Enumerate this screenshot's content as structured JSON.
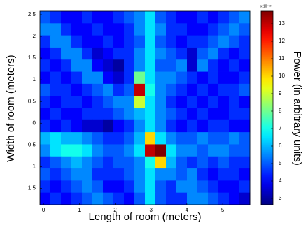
{
  "chart_data": {
    "type": "heatmap",
    "xlabel": "Length of room (meters)",
    "ylabel": "Width of room (meters)",
    "colorbar_label": "Power (in arbitrary units)",
    "colorbar_exponent": "x 10⁻¹³",
    "colormap": "jet",
    "xlim": [
      -0.1,
      5.76
    ],
    "ylim": [
      -1.88,
      2.58
    ],
    "xticks": [
      0,
      1,
      2,
      3,
      4,
      5
    ],
    "yticks": [
      2.5,
      2,
      1.5,
      1,
      0.5,
      0,
      {
        "value": -0.5,
        "label": "0.5"
      },
      {
        "value": -1,
        "label": "1"
      },
      {
        "value": -1.5,
        "label": "1.5"
      }
    ],
    "clim": [
      2.64,
      13.72
    ],
    "cticks": [
      3,
      4,
      5,
      6,
      7,
      8,
      9,
      10,
      11,
      12,
      13
    ],
    "z": [
      [
        5,
        4.5,
        4,
        4,
        4.5,
        4,
        4,
        4.5,
        5,
        5.5,
        6.5,
        5,
        4.5,
        4,
        4,
        4.5,
        4,
        4.5,
        5,
        5.5
      ],
      [
        5.5,
        5.5,
        4.5,
        4,
        4,
        4.5,
        4,
        4,
        4.5,
        5.5,
        6.5,
        5.5,
        4.5,
        4.5,
        4,
        4,
        4.5,
        5,
        5.5,
        5
      ],
      [
        4.5,
        5.5,
        5.5,
        4.5,
        4,
        4,
        4.5,
        4,
        4.5,
        5,
        6.5,
        5,
        4.5,
        4,
        4.5,
        4.5,
        5,
        5.5,
        5,
        4.5
      ],
      [
        4,
        4.5,
        5.5,
        5.5,
        4.5,
        3.5,
        4,
        4.5,
        4.5,
        5.5,
        6.5,
        5.5,
        5,
        4.5,
        3.5,
        5,
        5.5,
        4.5,
        4,
        4.5
      ],
      [
        4.5,
        4,
        4.5,
        5.5,
        5.5,
        4,
        3.5,
        3,
        4.5,
        5.5,
        6.5,
        5,
        5,
        5.5,
        3.5,
        5.5,
        4.5,
        4,
        4.5,
        4
      ],
      [
        4,
        4.5,
        4,
        4.5,
        5.5,
        5.5,
        4,
        3.5,
        4.5,
        8,
        6.5,
        5.5,
        5.5,
        5,
        4.5,
        4,
        4.5,
        4,
        4,
        4.5
      ],
      [
        5,
        4.5,
        4.5,
        4,
        4.5,
        5,
        5.5,
        4.5,
        5,
        13,
        7,
        5.5,
        5,
        4.5,
        4,
        4.5,
        4,
        4.5,
        4.5,
        5
      ],
      [
        4.5,
        4,
        4.5,
        4.5,
        4,
        4.5,
        5,
        5.5,
        5.5,
        9,
        6.5,
        5.5,
        4.5,
        4,
        4.5,
        4,
        4.5,
        4,
        4.5,
        4
      ],
      [
        4,
        4.5,
        4,
        4,
        4.5,
        4.5,
        4.5,
        5,
        5.5,
        6,
        6.5,
        5.5,
        5,
        4.5,
        4,
        4.5,
        4,
        4,
        4.5,
        4.5
      ],
      [
        4.5,
        4,
        4.5,
        4,
        3.5,
        3.5,
        3,
        4,
        4.5,
        5.5,
        6.5,
        5.5,
        4.5,
        4,
        4.5,
        4,
        4.5,
        4.5,
        4,
        4
      ],
      [
        6,
        6.5,
        6,
        6,
        5.5,
        5,
        4.5,
        4.5,
        5,
        6,
        10,
        6.5,
        5.5,
        5,
        5,
        5.5,
        5,
        5,
        5.5,
        5
      ],
      [
        5.5,
        6.5,
        7,
        7,
        6.5,
        5.5,
        5,
        5,
        5.5,
        6.5,
        13,
        14,
        6.5,
        5.5,
        5.5,
        5,
        5.5,
        5.5,
        5,
        5
      ],
      [
        4.5,
        5,
        5.5,
        6,
        5.5,
        5,
        4.5,
        5,
        5,
        5.5,
        7,
        10,
        6,
        5,
        4.5,
        5,
        4.5,
        5,
        4.5,
        4.5
      ],
      [
        5,
        4.5,
        5,
        5.5,
        5.5,
        4.5,
        4.5,
        4.5,
        5,
        5.5,
        6.5,
        5.5,
        5.5,
        5,
        5.5,
        4.5,
        4,
        4.5,
        4.5,
        4
      ],
      [
        4.5,
        4,
        4.5,
        5,
        5.5,
        5,
        4,
        4,
        4.5,
        5.5,
        6.5,
        5,
        4.5,
        5.5,
        5.5,
        5,
        4.5,
        4,
        4,
        4.5
      ],
      [
        4,
        4.5,
        4,
        4.5,
        5,
        5.5,
        5,
        4.5,
        4,
        5,
        6.5,
        5,
        4.5,
        4.5,
        5.5,
        5.5,
        5,
        4.5,
        4,
        3.5
      ]
    ]
  }
}
